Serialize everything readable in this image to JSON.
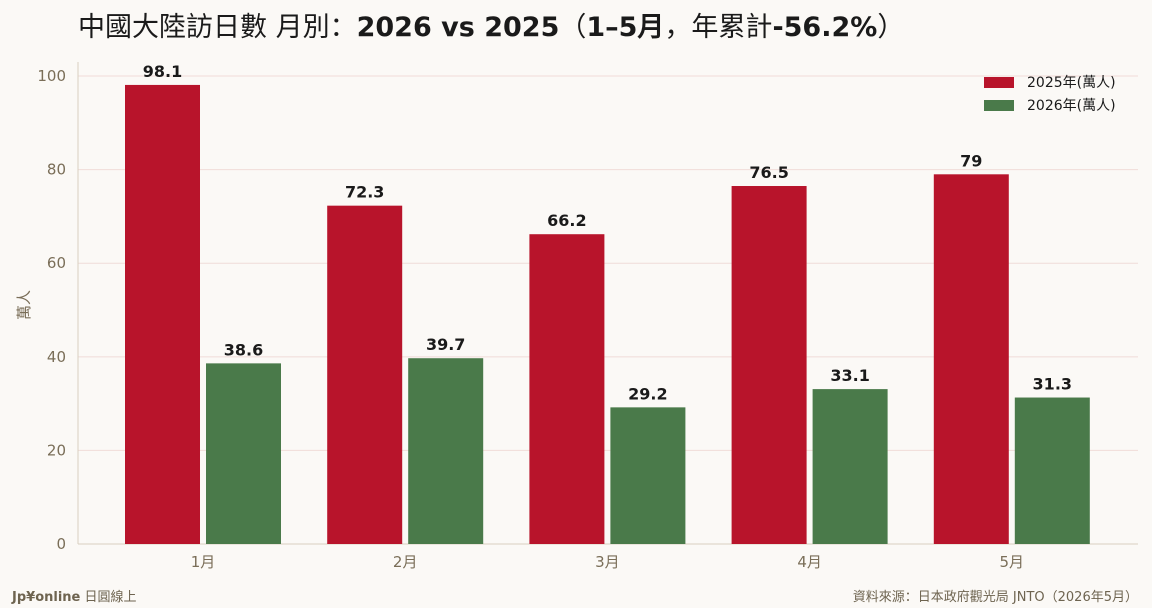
{
  "title": {
    "prefix": "中國大陸訪日數 月別：",
    "bold_main": "2026 vs 2025",
    "paren_open": "（",
    "bold_range": "1–5月",
    "comma": "，年累計",
    "bold_change": "-56.2%",
    "paren_close": "）"
  },
  "footer": {
    "brand": "Jp¥online",
    "brand_suffix": " 日圓線上",
    "source": "資料來源：日本政府觀光局 JNTO（2026年5月）"
  },
  "chart_data": {
    "type": "bar",
    "title": "中國大陸訪日數 月別：2026 vs 2025（1–5月，年累計-56.2%）",
    "ylabel": "萬人",
    "xlabel": "",
    "categories": [
      "1月",
      "2月",
      "3月",
      "4月",
      "5月"
    ],
    "series": [
      {
        "name": "2025年(萬人)",
        "color": "#b8142b",
        "values": [
          98.1,
          72.3,
          66.2,
          76.5,
          79
        ]
      },
      {
        "name": "2026年(萬人)",
        "color": "#4a7a4a",
        "values": [
          38.6,
          39.7,
          29.2,
          33.1,
          31.3
        ]
      }
    ],
    "data_labels": [
      [
        "98.1",
        "72.3",
        "66.2",
        "76.5",
        "79"
      ],
      [
        "38.6",
        "39.7",
        "29.2",
        "33.1",
        "31.3"
      ]
    ],
    "ylim": [
      0,
      103
    ],
    "yticks": [
      0,
      20,
      40,
      60,
      80,
      100
    ],
    "grid": true,
    "legend": "top-right"
  }
}
